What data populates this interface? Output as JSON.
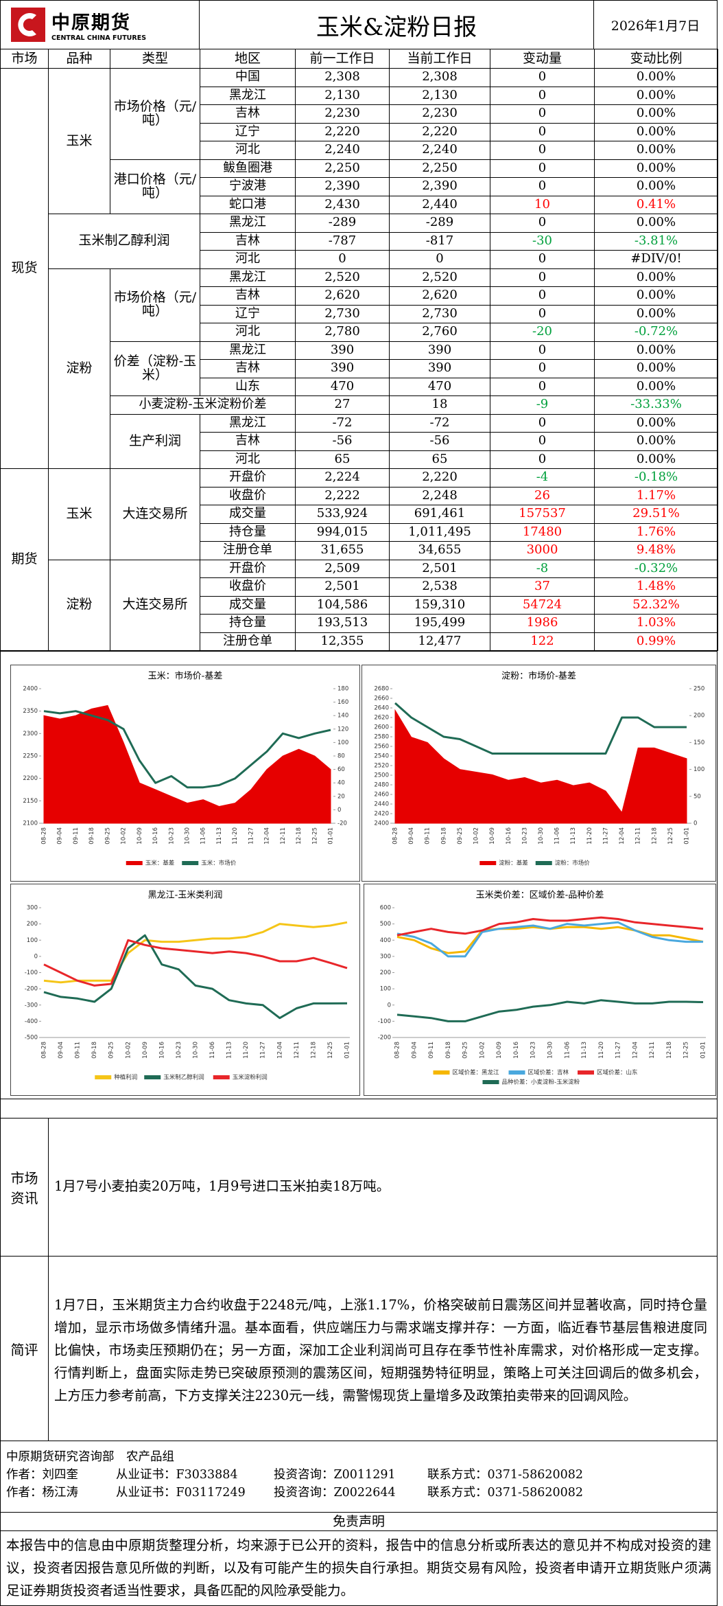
{
  "header": {
    "logo": "中原期货",
    "logo_en": "CENTRAL CHINA FUTURES",
    "title": "玉米&淀粉日报",
    "date": "2026年1月7日"
  },
  "table": {
    "headers": [
      "市场",
      "品种",
      "类型",
      "地区",
      "前一工作日",
      "当前工作日",
      "变动量",
      "变动比例"
    ],
    "sections": [
      {
        "market": "现货",
        "groups": [
          {
            "variety": "玉米",
            "types": [
              {
                "type": "市场价格（元/吨）",
                "rows": [
                  [
                    "中国",
                    "2,308",
                    "2,308",
                    "0",
                    "0.00%"
                  ],
                  [
                    "黑龙江",
                    "2,130",
                    "2,130",
                    "0",
                    "0.00%"
                  ],
                  [
                    "吉林",
                    "2,230",
                    "2,230",
                    "0",
                    "0.00%"
                  ],
                  [
                    "辽宁",
                    "2,220",
                    "2,220",
                    "0",
                    "0.00%"
                  ],
                  [
                    "河北",
                    "2,240",
                    "2,240",
                    "0",
                    "0.00%"
                  ]
                ]
              },
              {
                "type": "港口价格（元/吨）",
                "rows": [
                  [
                    "鲅鱼圈港",
                    "2,250",
                    "2,250",
                    "0",
                    "0.00%"
                  ],
                  [
                    "宁波港",
                    "2,390",
                    "2,390",
                    "0",
                    "0.00%"
                  ],
                  [
                    "蛇口港",
                    "2,430",
                    "2,440",
                    "10",
                    "0.41%"
                  ]
                ]
              }
            ]
          },
          {
            "label": "玉米制乙醇利润",
            "rows": [
              [
                "黑龙江",
                "-289",
                "-289",
                "0",
                "0.00%"
              ],
              [
                "吉林",
                "-787",
                "-817",
                "-30",
                "-3.81%"
              ],
              [
                "河北",
                "0",
                "0",
                "0",
                "#DIV/0!"
              ]
            ]
          },
          {
            "variety": "淀粉",
            "types": [
              {
                "type": "市场价格（元/吨）",
                "rows": [
                  [
                    "黑龙江",
                    "2,520",
                    "2,520",
                    "0",
                    "0.00%"
                  ],
                  [
                    "吉林",
                    "2,620",
                    "2,620",
                    "0",
                    "0.00%"
                  ],
                  [
                    "辽宁",
                    "2,730",
                    "2,730",
                    "0",
                    "0.00%"
                  ],
                  [
                    "河北",
                    "2,780",
                    "2,760",
                    "-20",
                    "-0.72%"
                  ]
                ]
              },
              {
                "type": "价差（淀粉-玉米）",
                "rows": [
                  [
                    "黑龙江",
                    "390",
                    "390",
                    "0",
                    "0.00%"
                  ],
                  [
                    "吉林",
                    "390",
                    "390",
                    "0",
                    "0.00%"
                  ],
                  [
                    "山东",
                    "470",
                    "470",
                    "0",
                    "0.00%"
                  ]
                ]
              },
              {
                "label": "小麦淀粉-玉米淀粉价差",
                "values": [
                  "27",
                  "18",
                  "-9",
                  "-33.33%"
                ]
              },
              {
                "type": "生产利润",
                "rows": [
                  [
                    "黑龙江",
                    "-72",
                    "-72",
                    "0",
                    "0.00%"
                  ],
                  [
                    "吉林",
                    "-56",
                    "-56",
                    "0",
                    "0.00%"
                  ],
                  [
                    "河北",
                    "65",
                    "65",
                    "0",
                    "0.00%"
                  ]
                ]
              }
            ]
          }
        ]
      },
      {
        "market": "期货",
        "groups": [
          {
            "variety": "玉米",
            "types": [
              {
                "type": "大连交易所",
                "rows": [
                  [
                    "开盘价",
                    "2,224",
                    "2,220",
                    "-4",
                    "-0.18%"
                  ],
                  [
                    "收盘价",
                    "2,222",
                    "2,248",
                    "26",
                    "1.17%"
                  ],
                  [
                    "成交量",
                    "533,924",
                    "691,461",
                    "157537",
                    "29.51%"
                  ],
                  [
                    "持仓量",
                    "994,015",
                    "1,011,495",
                    "17480",
                    "1.76%"
                  ],
                  [
                    "注册仓单",
                    "31,655",
                    "34,655",
                    "3000",
                    "9.48%"
                  ]
                ]
              }
            ]
          },
          {
            "variety": "淀粉",
            "types": [
              {
                "type": "大连交易所",
                "rows": [
                  [
                    "开盘价",
                    "2,509",
                    "2,501",
                    "-8",
                    "-0.32%"
                  ],
                  [
                    "收盘价",
                    "2,501",
                    "2,538",
                    "37",
                    "1.48%"
                  ],
                  [
                    "成交量",
                    "104,586",
                    "159,310",
                    "54724",
                    "52.32%"
                  ],
                  [
                    "持仓量",
                    "193,513",
                    "195,499",
                    "1986",
                    "1.03%"
                  ],
                  [
                    "注册仓单",
                    "12,355",
                    "12,477",
                    "122",
                    "0.99%"
                  ]
                ]
              }
            ]
          }
        ]
      }
    ]
  },
  "chart_data": [
    {
      "type": "line",
      "title": "玉米：市场价-基差",
      "categories": [
        "08-28",
        "09-04",
        "09-11",
        "09-18",
        "09-25",
        "10-02",
        "10-09",
        "10-16",
        "10-23",
        "10-30",
        "11-06",
        "11-13",
        "11-20",
        "11-27",
        "12-04",
        "12-11",
        "12-18",
        "12-25",
        "01-01"
      ],
      "ylim": [
        2100,
        2400
      ],
      "yticks": [
        2100,
        2150,
        2200,
        2250,
        2300,
        2350,
        2400
      ],
      "y2lim": [
        -20,
        180
      ],
      "y2ticks": [
        -20,
        0,
        20,
        40,
        60,
        80,
        100,
        120,
        140,
        160,
        180
      ],
      "series": [
        {
          "name": "玉米：基差",
          "type": "area",
          "axis": "y2",
          "color": "#e60000",
          "values": [
            140,
            135,
            140,
            150,
            155,
            100,
            40,
            30,
            20,
            10,
            15,
            5,
            10,
            30,
            60,
            80,
            90,
            80,
            60
          ]
        },
        {
          "name": "玉米：市场价",
          "type": "line",
          "color": "#1f6b55",
          "values": [
            2350,
            2345,
            2350,
            2340,
            2330,
            2310,
            2240,
            2190,
            2205,
            2180,
            2180,
            2185,
            2200,
            2230,
            2260,
            2300,
            2290,
            2300,
            2308
          ]
        }
      ]
    },
    {
      "type": "line",
      "title": "淀粉：市场价-基差",
      "categories": [
        "08-28",
        "09-04",
        "09-11",
        "09-18",
        "09-25",
        "10-02",
        "10-09",
        "10-16",
        "10-23",
        "10-30",
        "11-06",
        "11-13",
        "11-20",
        "11-27",
        "12-04",
        "12-11",
        "12-18",
        "12-25",
        "01-01"
      ],
      "ylim": [
        2400,
        2680
      ],
      "yticks": [
        2400,
        2420,
        2440,
        2460,
        2480,
        2500,
        2520,
        2540,
        2560,
        2580,
        2600,
        2620,
        2640,
        2660,
        2680
      ],
      "y2lim": [
        0,
        250
      ],
      "y2ticks": [
        0,
        50,
        100,
        150,
        200,
        250
      ],
      "series": [
        {
          "name": "淀粉：基差",
          "type": "area",
          "axis": "y2",
          "color": "#e60000",
          "values": [
            210,
            160,
            150,
            120,
            100,
            95,
            90,
            80,
            85,
            75,
            80,
            70,
            75,
            60,
            20,
            140,
            140,
            130,
            120
          ]
        },
        {
          "name": "淀粉：市场价",
          "type": "line",
          "color": "#1f6b55",
          "values": [
            2650,
            2620,
            2600,
            2580,
            2575,
            2560,
            2545,
            2545,
            2545,
            2545,
            2545,
            2545,
            2545,
            2545,
            2620,
            2620,
            2600,
            2600,
            2600
          ]
        }
      ]
    },
    {
      "type": "line",
      "title": "黑龙江-玉米类利润",
      "categories": [
        "08-28",
        "09-04",
        "09-11",
        "09-18",
        "09-25",
        "10-02",
        "10-09",
        "10-16",
        "10-23",
        "10-30",
        "11-06",
        "11-13",
        "11-20",
        "11-27",
        "12-04",
        "12-11",
        "12-18",
        "12-25",
        "01-01"
      ],
      "ylim": [
        -500,
        300
      ],
      "yticks": [
        -500,
        -400,
        -300,
        -200,
        -100,
        0,
        100,
        200,
        300
      ],
      "series": [
        {
          "name": "种植利润",
          "type": "line",
          "color": "#f5c518",
          "values": [
            -150,
            -160,
            -150,
            -150,
            -150,
            20,
            100,
            90,
            90,
            100,
            110,
            110,
            120,
            150,
            200,
            190,
            180,
            190,
            210
          ]
        },
        {
          "name": "玉米制乙醇利润",
          "type": "line",
          "color": "#1f6b55",
          "values": [
            -220,
            -250,
            -260,
            -280,
            -200,
            50,
            130,
            -50,
            -80,
            -180,
            -200,
            -270,
            -290,
            -300,
            -380,
            -320,
            -290,
            -290,
            -289
          ]
        },
        {
          "name": "玉米淀粉利润",
          "type": "line",
          "color": "#e8262a",
          "values": [
            -50,
            -100,
            -150,
            -180,
            -170,
            100,
            70,
            50,
            40,
            30,
            20,
            30,
            20,
            0,
            -30,
            -30,
            -10,
            -40,
            -72
          ]
        }
      ]
    },
    {
      "type": "line",
      "title": "玉米类价差：区域价差-品种价差",
      "categories": [
        "08-28",
        "09-04",
        "09-11",
        "09-18",
        "09-25",
        "10-02",
        "10-09",
        "10-16",
        "10-23",
        "10-30",
        "11-06",
        "11-13",
        "11-20",
        "11-27",
        "12-04",
        "12-11",
        "12-18",
        "12-25",
        "01-01"
      ],
      "ylim": [
        -200,
        600
      ],
      "yticks": [
        -200,
        -100,
        0,
        100,
        200,
        300,
        400,
        500,
        600
      ],
      "series": [
        {
          "name": "区域价差：黑龙江",
          "type": "line",
          "color": "#f5b700",
          "values": [
            420,
            400,
            350,
            320,
            330,
            460,
            470,
            470,
            480,
            470,
            480,
            480,
            470,
            480,
            460,
            430,
            430,
            410,
            390
          ]
        },
        {
          "name": "区域价差：吉林",
          "type": "line",
          "color": "#4aa8de",
          "values": [
            440,
            420,
            380,
            300,
            300,
            450,
            470,
            480,
            490,
            470,
            500,
            490,
            500,
            510,
            460,
            420,
            400,
            390,
            390
          ]
        },
        {
          "name": "区域价差：山东",
          "type": "line",
          "color": "#e8262a",
          "values": [
            430,
            450,
            470,
            450,
            440,
            460,
            500,
            510,
            530,
            520,
            520,
            530,
            540,
            530,
            510,
            500,
            490,
            480,
            470
          ]
        },
        {
          "name": "品种价差：小麦淀粉-玉米淀粉",
          "type": "line",
          "color": "#1f6b55",
          "values": [
            -60,
            -70,
            -80,
            -100,
            -100,
            -70,
            -40,
            -30,
            -10,
            0,
            20,
            10,
            30,
            20,
            10,
            10,
            20,
            20,
            18
          ]
        }
      ]
    }
  ],
  "news": {
    "label": "市场资讯",
    "text": "1月7号小麦拍卖20万吨，1月9号进口玉米拍卖18万吨。"
  },
  "review": {
    "label": "简评",
    "text": "1月7日，玉米期货主力合约收盘于2248元/吨，上涨1.17%，价格突破前日震荡区间并显著收高，同时持仓量增加，显示市场做多情绪升温。基本面看，供应端压力与需求端支撑并存：一方面，临近春节基层售粮进度同比偏快，市场卖压预期仍在；另一方面，深加工企业利润尚可且存在季节性补库需求，对价格形成一定支撑。行情判断上，盘面实际走势已突破原预测的震荡区间，短期强势特征明显，策略上可关注回调后的做多机会，上方压力参考前高，下方支撑关注2230元一线，需警惕现货上量增多及政策拍卖带来的回调风险。"
  },
  "footer": {
    "dept": "中原期货研究咨询部　农产品组",
    "authors": [
      [
        "作者：刘四奎",
        "从业证书：F3033884",
        "投资咨询：Z0011291",
        "联系方式：0371-58620082"
      ],
      [
        "作者：杨江涛",
        "从业证书：F03117249",
        "投资咨询：Z0022644",
        "联系方式：0371-58620082"
      ]
    ]
  },
  "disclaimer": {
    "title": "免责声明",
    "text": "本报告中的信息由中原期货整理分析，均来源于已公开的资料，报告中的信息分析或所表达的意见并不构成对投资的建议，投资者因报告意见所做的判断，以及有可能产生的损失自行承担。期货交易有风险，投资者申请开立期货账户须满足证券期货投资者适当性要求，具备匹配的风险承受能力。"
  }
}
